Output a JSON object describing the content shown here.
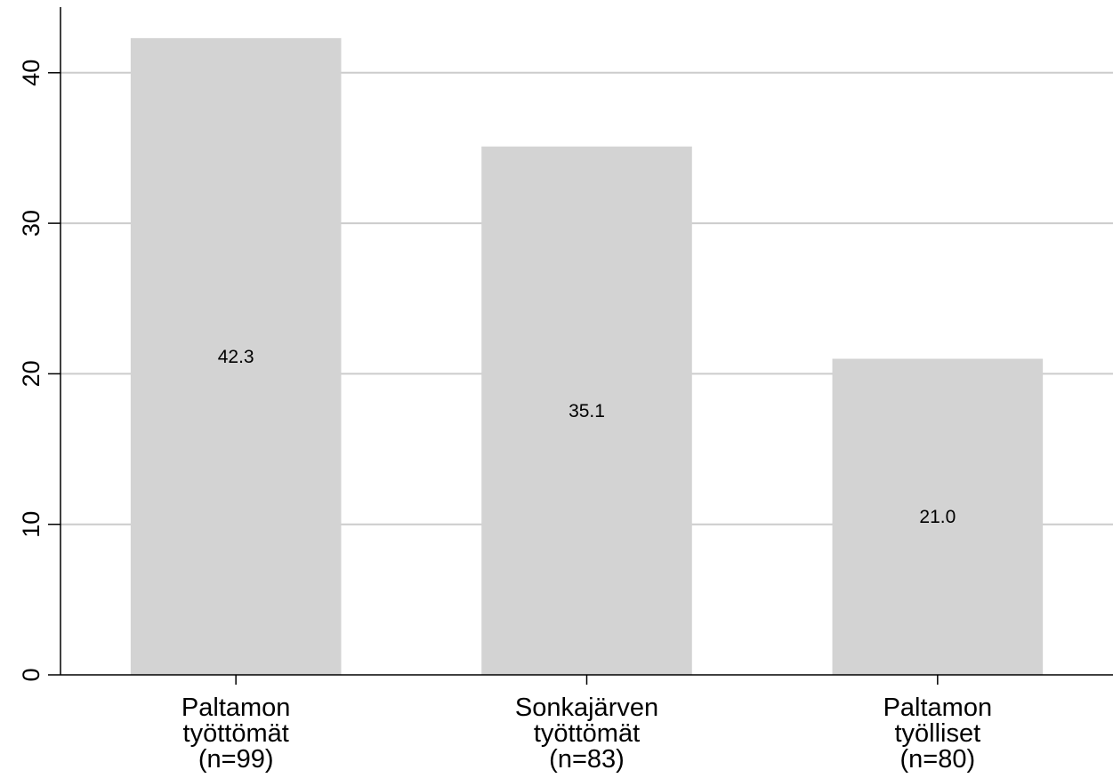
{
  "chart_data": {
    "type": "bar",
    "title": "",
    "xlabel": "",
    "ylabel": "",
    "ylim": [
      0,
      44
    ],
    "yticks": [
      "0",
      "10",
      "20",
      "30",
      "40"
    ],
    "grid": true,
    "categories": [
      [
        "Paltamon",
        "työttömät",
        "(n=99)"
      ],
      [
        "Sonkajärven",
        "työttömät",
        "(n=83)"
      ],
      [
        "Paltamon",
        "työlliset",
        "(n=80)"
      ]
    ],
    "values": [
      42.3,
      35.1,
      21.0
    ],
    "data_labels": [
      "42.3",
      "35.1",
      "21.0"
    ],
    "colors": {
      "bar": "#d3d3d3",
      "grid": "#cccccc",
      "axis": "#000000"
    }
  }
}
